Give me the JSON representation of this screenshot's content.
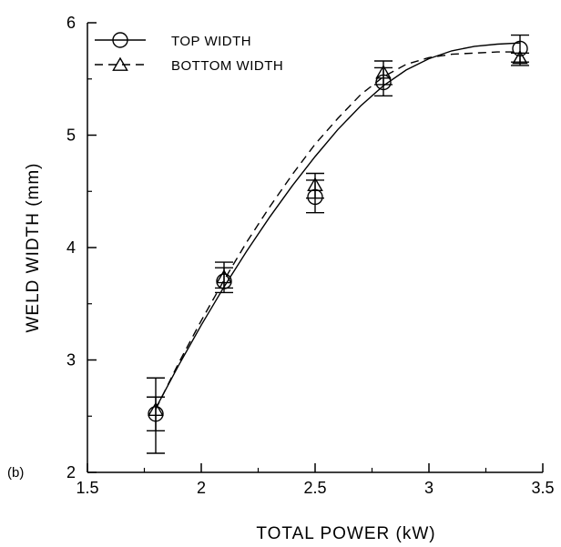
{
  "chart_data": {
    "type": "line",
    "panel_label": "(b)",
    "xlabel": "TOTAL  POWER  (kW)",
    "ylabel": "WELD  WIDTH  (mm)",
    "xlim": [
      1.5,
      3.5
    ],
    "ylim": [
      2,
      6
    ],
    "x_ticks": [
      "1.5",
      "2",
      "2.5",
      "3",
      "3.5"
    ],
    "y_ticks": [
      "2",
      "3",
      "4",
      "5",
      "6"
    ],
    "grid": false,
    "legend_position": "top-left",
    "series": [
      {
        "name": "TOP WIDTH",
        "marker": "circle",
        "line_style": "solid",
        "x": [
          1.8,
          2.1,
          2.5,
          2.8,
          3.4
        ],
        "y": [
          2.52,
          3.7,
          4.45,
          5.47,
          5.77
        ],
        "err_low": [
          2.17,
          3.6,
          4.31,
          5.35,
          5.65
        ],
        "err_high": [
          2.84,
          3.87,
          4.6,
          5.6,
          5.89
        ],
        "fit_x": [
          1.8,
          1.9,
          2.0,
          2.1,
          2.2,
          2.3,
          2.4,
          2.5,
          2.6,
          2.7,
          2.8,
          2.9,
          3.0,
          3.1,
          3.2,
          3.3,
          3.4
        ],
        "fit_y": [
          2.57,
          2.95,
          3.31,
          3.65,
          3.97,
          4.27,
          4.55,
          4.81,
          5.05,
          5.26,
          5.44,
          5.58,
          5.68,
          5.75,
          5.79,
          5.81,
          5.82
        ]
      },
      {
        "name": "BOTTOM WIDTH",
        "marker": "triangle",
        "line_style": "dashed",
        "x": [
          1.8,
          2.1,
          2.5,
          2.8,
          3.4
        ],
        "y": [
          2.55,
          3.73,
          4.55,
          5.55,
          5.68
        ],
        "err_low": [
          2.37,
          3.64,
          4.44,
          5.45,
          5.62
        ],
        "err_high": [
          2.67,
          3.82,
          4.66,
          5.66,
          5.73
        ],
        "fit_x": [
          1.8,
          1.9,
          2.0,
          2.1,
          2.2,
          2.3,
          2.4,
          2.5,
          2.6,
          2.7,
          2.8,
          2.9,
          3.0,
          3.1,
          3.2,
          3.3,
          3.4
        ],
        "fit_y": [
          2.56,
          2.97,
          3.35,
          3.71,
          4.05,
          4.36,
          4.65,
          4.92,
          5.15,
          5.36,
          5.52,
          5.63,
          5.69,
          5.72,
          5.73,
          5.74,
          5.74
        ]
      }
    ]
  }
}
